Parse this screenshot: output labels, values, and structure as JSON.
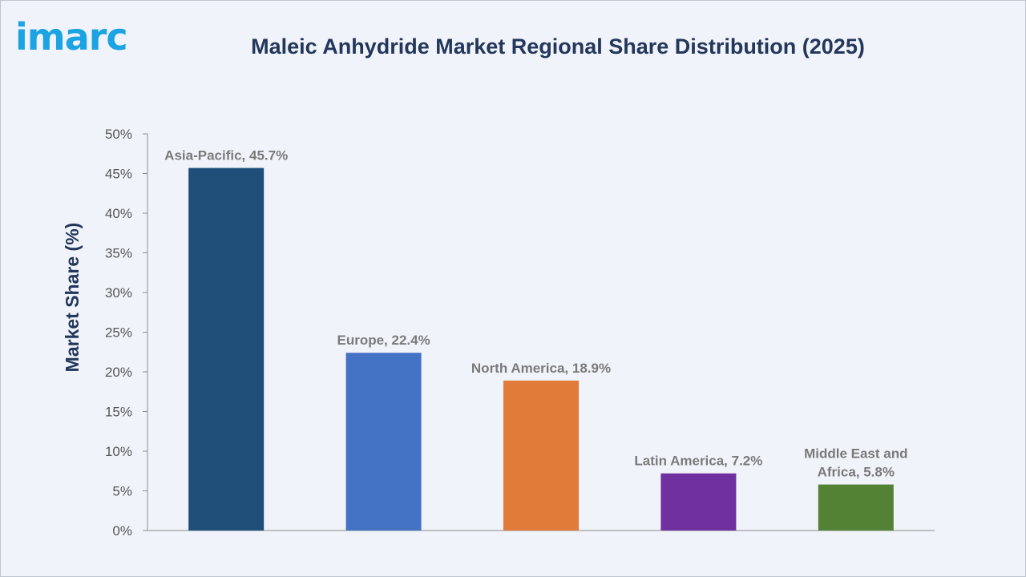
{
  "brand": {
    "logo_text": "imarc",
    "logo_color": "#1ba3e3"
  },
  "chart_data": {
    "type": "bar",
    "title": "Maleic Anhydride Market Regional Share Distribution (2025)",
    "xlabel": "",
    "ylabel": "Market Share (%)",
    "ylim": [
      0,
      50
    ],
    "y_ticks": [
      0,
      5,
      10,
      15,
      20,
      25,
      30,
      35,
      40,
      45,
      50
    ],
    "y_tick_format": "{v}%",
    "grid": false,
    "legend": "none",
    "categories": [
      "Asia-Pacific",
      "Europe",
      "North America",
      "Latin America",
      "Middle East and Africa"
    ],
    "values": [
      45.7,
      22.4,
      18.9,
      7.2,
      5.8
    ],
    "data_labels": [
      [
        "Asia-Pacific, 45.7%"
      ],
      [
        "Europe, 22.4%"
      ],
      [
        "North America, 18.9%"
      ],
      [
        "Latin America, 7.2%"
      ],
      [
        "Middle East and",
        "Africa, 5.8%"
      ]
    ],
    "colors": [
      "#1f4e79",
      "#4472c4",
      "#e07b39",
      "#7030a0",
      "#548235"
    ]
  }
}
